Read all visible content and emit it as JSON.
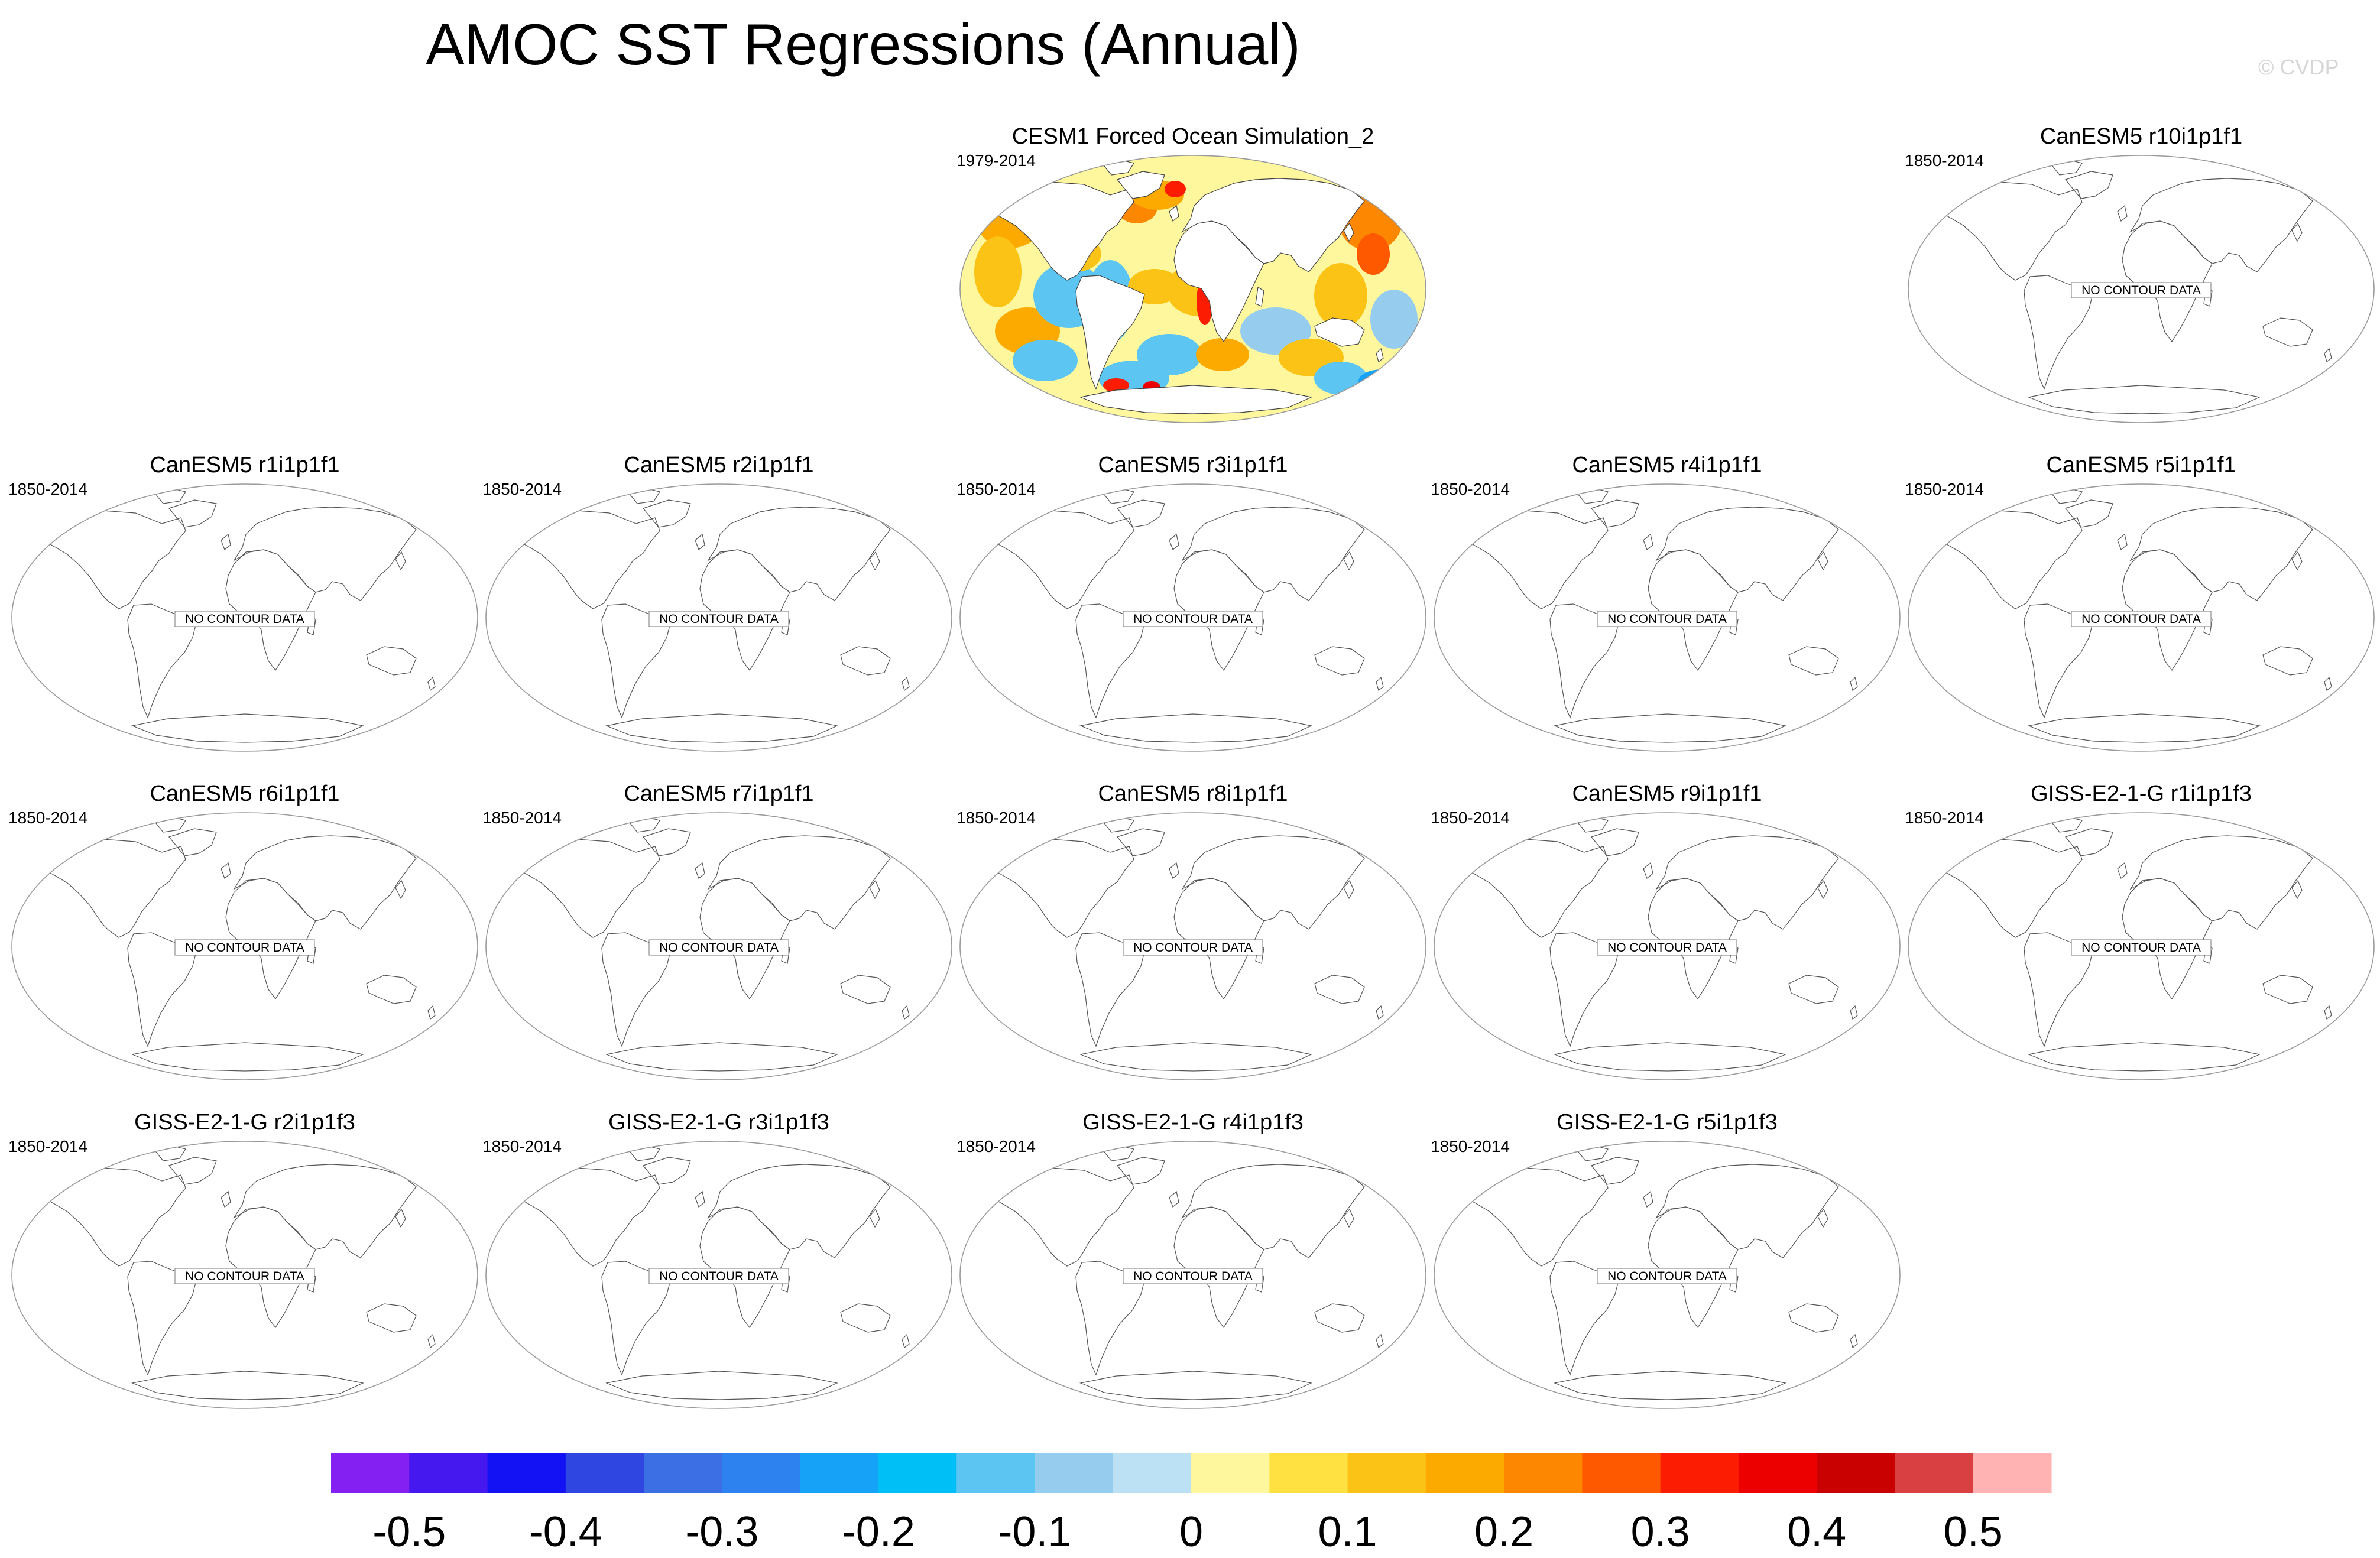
{
  "title": "AMOC SST Regressions (Annual)",
  "credit": "© CVDP",
  "chart_data": {
    "type": "heatmap",
    "title": "AMOC SST Regressions (Annual)",
    "projection": "global map (Robinson-like)",
    "panels": [
      {
        "id": "cesm1",
        "title": "CESM1 Forced Ocean Simulation_2",
        "years": "1979-2014",
        "has_data": true,
        "pattern_notes": "Positive anomalies (0.1-0.3) over North Atlantic subpolar gyre, Kuroshio region, eastern subtropical Pacific and Southern Ocean patches; negative anomalies (-0.1 to -0.2) in western tropical Pacific, South Atlantic and parts of Southern Ocean"
      },
      {
        "id": "canesm5-r10",
        "title": "CanESM5 r10i1p1f1",
        "years": "1850-2014",
        "has_data": false,
        "message": "NO CONTOUR DATA"
      },
      {
        "id": "canesm5-r1",
        "title": "CanESM5 r1i1p1f1",
        "years": "1850-2014",
        "has_data": false,
        "message": "NO CONTOUR DATA"
      },
      {
        "id": "canesm5-r2",
        "title": "CanESM5 r2i1p1f1",
        "years": "1850-2014",
        "has_data": false,
        "message": "NO CONTOUR DATA"
      },
      {
        "id": "canesm5-r3",
        "title": "CanESM5 r3i1p1f1",
        "years": "1850-2014",
        "has_data": false,
        "message": "NO CONTOUR DATA"
      },
      {
        "id": "canesm5-r4",
        "title": "CanESM5 r4i1p1f1",
        "years": "1850-2014",
        "has_data": false,
        "message": "NO CONTOUR DATA"
      },
      {
        "id": "canesm5-r5",
        "title": "CanESM5 r5i1p1f1",
        "years": "1850-2014",
        "has_data": false,
        "message": "NO CONTOUR DATA"
      },
      {
        "id": "canesm5-r6",
        "title": "CanESM5 r6i1p1f1",
        "years": "1850-2014",
        "has_data": false,
        "message": "NO CONTOUR DATA"
      },
      {
        "id": "canesm5-r7",
        "title": "CanESM5 r7i1p1f1",
        "years": "1850-2014",
        "has_data": false,
        "message": "NO CONTOUR DATA"
      },
      {
        "id": "canesm5-r8",
        "title": "CanESM5 r8i1p1f1",
        "years": "1850-2014",
        "has_data": false,
        "message": "NO CONTOUR DATA"
      },
      {
        "id": "canesm5-r9",
        "title": "CanESM5 r9i1p1f1",
        "years": "1850-2014",
        "has_data": false,
        "message": "NO CONTOUR DATA"
      },
      {
        "id": "giss-r1",
        "title": "GISS-E2-1-G r1i1p1f3",
        "years": "1850-2014",
        "has_data": false,
        "message": "NO CONTOUR DATA"
      },
      {
        "id": "giss-r2",
        "title": "GISS-E2-1-G r2i1p1f3",
        "years": "1850-2014",
        "has_data": false,
        "message": "NO CONTOUR DATA"
      },
      {
        "id": "giss-r3",
        "title": "GISS-E2-1-G r3i1p1f3",
        "years": "1850-2014",
        "has_data": false,
        "message": "NO CONTOUR DATA"
      },
      {
        "id": "giss-r4",
        "title": "GISS-E2-1-G r4i1p1f3",
        "years": "1850-2014",
        "has_data": false,
        "message": "NO CONTOUR DATA"
      },
      {
        "id": "giss-r5",
        "title": "GISS-E2-1-G r5i1p1f3",
        "years": "1850-2014",
        "has_data": false,
        "message": "NO CONTOUR DATA"
      }
    ],
    "colorbar": {
      "min": -0.55,
      "max": 0.55,
      "step": 0.05,
      "colors": [
        "#8421f2",
        "#4618f0",
        "#1212f5",
        "#2f46e0",
        "#3c6fe3",
        "#2d82f0",
        "#15a2f7",
        "#00bff6",
        "#5cc5f2",
        "#96cdee",
        "#bde1f4",
        "#fff79d",
        "#ffe241",
        "#fbc316",
        "#fca900",
        "#fd8700",
        "#fe5800",
        "#fc1c02",
        "#ec0000",
        "#c90101",
        "#d94041",
        "#ffb3b3"
      ],
      "tick_labels": [
        "-0.5",
        "-0.4",
        "-0.3",
        "-0.2",
        "-0.1",
        "0",
        "0.1",
        "0.2",
        "0.3",
        "0.4",
        "0.5"
      ],
      "tick_values": [
        -0.5,
        -0.4,
        -0.3,
        -0.2,
        -0.1,
        0,
        0.1,
        0.2,
        0.3,
        0.4,
        0.5
      ]
    }
  }
}
